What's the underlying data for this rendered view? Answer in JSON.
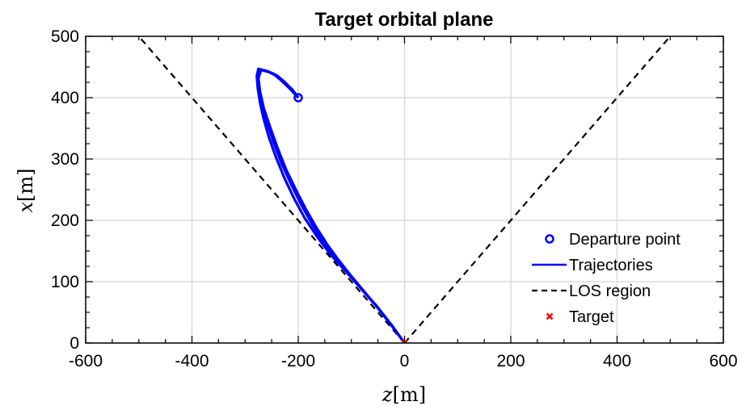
{
  "chart_data": {
    "type": "line",
    "title": "Target orbital plane",
    "xlabel": {
      "symbol": "z",
      "unit": "[m]"
    },
    "ylabel": {
      "symbol": "x",
      "unit": "[m]"
    },
    "xlim": [
      -600,
      600
    ],
    "ylim": [
      0,
      500
    ],
    "xticks": [
      -600,
      -400,
      -200,
      0,
      200,
      400,
      600
    ],
    "yticks": [
      0,
      100,
      200,
      300,
      400,
      500
    ],
    "xtick_labels": [
      "-600",
      "-400",
      "-200",
      "0",
      "200",
      "400",
      "600"
    ],
    "ytick_labels": [
      "0",
      "100",
      "200",
      "300",
      "400",
      "500"
    ],
    "grid": true,
    "legend_position": "lower-right",
    "colors": {
      "trajectory": "#0000ff",
      "los": "#000000",
      "target": "#ff0000",
      "grid": "#dcdcdc"
    },
    "series": [
      {
        "name": "Departure point",
        "style": "marker-circle",
        "x": [
          -200
        ],
        "y": [
          400
        ]
      },
      {
        "name": "Trajectories",
        "style": "line",
        "trajectories": [
          {
            "x": [
              -200,
              -215,
              -232,
              -247,
              -262,
              -275,
              -278,
              -276,
              -272,
              -265,
              -255,
              -242,
              -226,
              -208,
              -188,
              -165,
              -140,
              -112,
              -82,
              -52,
              -25,
              0
            ],
            "y": [
              400,
              414,
              428,
              439,
              444,
              447,
              435,
              415,
              392,
              365,
              335,
              303,
              269,
              236,
              204,
              174,
              145,
              118,
              89,
              60,
              30,
              0
            ]
          },
          {
            "x": [
              -200,
              -212,
              -228,
              -244,
              -258,
              -272,
              -276,
              -274,
              -268,
              -258,
              -246,
              -231,
              -213,
              -194,
              -174,
              -153,
              -131,
              -107,
              -80,
              -52,
              -25,
              0
            ],
            "y": [
              400,
              413,
              427,
              437,
              443,
              446,
              434,
              413,
              388,
              358,
              326,
              292,
              258,
              225,
              194,
              165,
              139,
              114,
              87,
              59,
              30,
              0
            ]
          },
          {
            "x": [
              -200,
              -210,
              -225,
              -240,
              -255,
              -270,
              -275,
              -272,
              -265,
              -253,
              -239,
              -223,
              -204,
              -185,
              -165,
              -145,
              -124,
              -102,
              -77,
              -51,
              -25,
              0
            ],
            "y": [
              400,
              412,
              425,
              436,
              442,
              445,
              432,
              410,
              383,
              352,
              318,
              283,
              249,
              217,
              187,
              160,
              135,
              111,
              85,
              58,
              29,
              0
            ]
          }
        ]
      },
      {
        "name": "LOS region",
        "style": "dashed",
        "lines": [
          {
            "x": [
              0,
              -500
            ],
            "y": [
              0,
              500
            ]
          },
          {
            "x": [
              0,
              500
            ],
            "y": [
              0,
              500
            ]
          }
        ]
      },
      {
        "name": "Target",
        "style": "marker-x",
        "x": [
          0
        ],
        "y": [
          0
        ]
      }
    ],
    "legend": [
      {
        "label": "Departure point",
        "symbol": "circle"
      },
      {
        "label": "Trajectories",
        "symbol": "line"
      },
      {
        "label": "LOS region",
        "symbol": "dashed"
      },
      {
        "label": "Target",
        "symbol": "x"
      }
    ]
  }
}
